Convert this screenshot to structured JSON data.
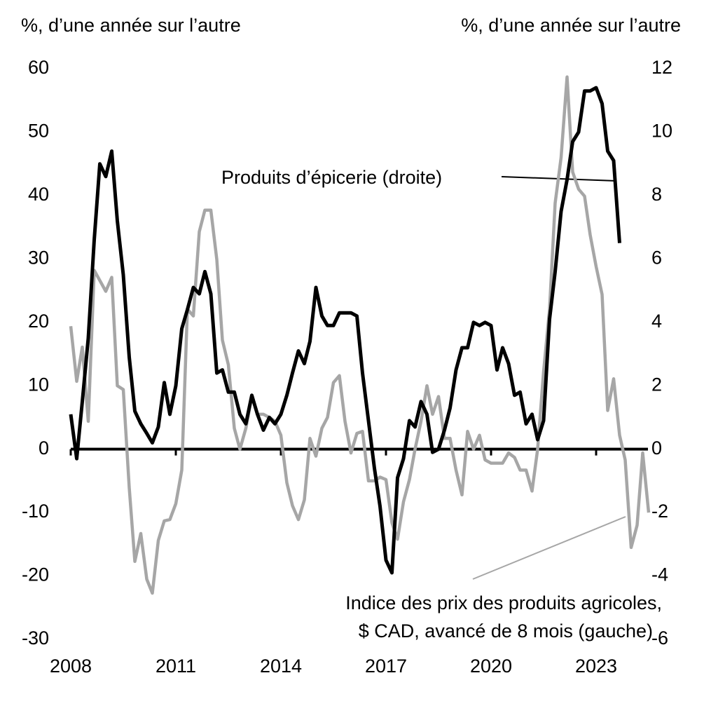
{
  "chart_data": {
    "type": "line",
    "y_label": "%, d’une année sur l’autre",
    "y2_label": "%, d’une année sur l’autre",
    "annotations": [
      "Produits d’épicerie (droite)",
      "Indice des prix des produits agricoles,",
      "$ CAD, avancé de 8 mois (gauche)"
    ],
    "x": [
      2008,
      2008.17,
      2008.33,
      2008.5,
      2008.67,
      2008.83,
      2009,
      2009.17,
      2009.33,
      2009.5,
      2009.67,
      2009.83,
      2010,
      2010.17,
      2010.33,
      2010.5,
      2010.67,
      2010.83,
      2011,
      2011.17,
      2011.33,
      2011.5,
      2011.67,
      2011.83,
      2012,
      2012.17,
      2012.33,
      2012.5,
      2012.67,
      2012.83,
      2013,
      2013.17,
      2013.33,
      2013.5,
      2013.67,
      2013.83,
      2014,
      2014.17,
      2014.33,
      2014.5,
      2014.67,
      2014.83,
      2015,
      2015.17,
      2015.33,
      2015.5,
      2015.67,
      2015.83,
      2016,
      2016.17,
      2016.33,
      2016.5,
      2016.67,
      2016.83,
      2017,
      2017.17,
      2017.33,
      2017.5,
      2017.67,
      2017.83,
      2018,
      2018.17,
      2018.33,
      2018.5,
      2018.67,
      2018.83,
      2019,
      2019.17,
      2019.33,
      2019.5,
      2019.67,
      2019.83,
      2020,
      2020.17,
      2020.33,
      2020.5,
      2020.67,
      2020.83,
      2021,
      2021.17,
      2021.33,
      2021.5,
      2021.67,
      2021.83,
      2022,
      2022.17,
      2022.33,
      2022.5,
      2022.67,
      2022.83,
      2023,
      2023.17,
      2023.33,
      2023.5,
      2023.67,
      2023.83,
      2024,
      2024.17,
      2024.33,
      2024.5
    ],
    "series": [
      {
        "color": "#a6a6a6",
        "axis": "y",
        "values": [
          19.4,
          10.7,
          16.1,
          4.4,
          28.2,
          26.6,
          24.9,
          27.1,
          10,
          9.4,
          -6.1,
          -17.7,
          -13.3,
          -20.5,
          -22.7,
          -14.4,
          -11.3,
          -11.1,
          -8.6,
          -3.3,
          22.1,
          21,
          34.3,
          37.7,
          37.7,
          29.9,
          17.2,
          13.3,
          3.3,
          0,
          3.3,
          8.3,
          5.5,
          5.5,
          5,
          4.4,
          2.2,
          -5.3,
          -8.9,
          -11.1,
          -8,
          1.7,
          -1.1,
          3.3,
          5,
          10.5,
          11.6,
          4.4,
          -0.6,
          2.5,
          2.8,
          -5,
          -5,
          -4.4,
          -4.8,
          -11.6,
          -14.2,
          -8.3,
          -4.8,
          0,
          4.4,
          10,
          5.5,
          8.3,
          1.7,
          1.7,
          -3.3,
          -7.2,
          2.8,
          0,
          2.2,
          -1.7,
          -2.2,
          -2.2,
          -2.2,
          -0.6,
          -1.3,
          -3.3,
          -3.3,
          -6.6,
          0,
          12.2,
          22.1,
          38.8,
          46,
          58.7,
          43.7,
          41,
          39.9,
          33.8,
          28.8,
          24.4,
          6.1,
          11.1,
          2.2,
          -1.7,
          -15.5,
          -12,
          -0.6,
          -10
        ]
      },
      {
        "color": "#000000",
        "axis": "y2",
        "values": [
          1.1,
          -0.3,
          1.5,
          3.5,
          6.6,
          9.0,
          8.6,
          9.4,
          7.2,
          5.5,
          2.9,
          1.2,
          0.8,
          0.5,
          0.2,
          0.7,
          2.1,
          1.1,
          2.0,
          3.8,
          4.4,
          5.1,
          4.9,
          5.6,
          4.9,
          2.4,
          2.5,
          1.8,
          1.8,
          1.1,
          0.8,
          1.7,
          1.1,
          0.6,
          1.0,
          0.8,
          1.1,
          1.7,
          2.4,
          3.1,
          2.7,
          3.4,
          5.1,
          4.2,
          3.9,
          3.9,
          4.3,
          4.3,
          4.3,
          4.2,
          2.4,
          0.9,
          -0.6,
          -1.8,
          -3.5,
          -3.9,
          -0.9,
          -0.3,
          0.9,
          0.7,
          1.5,
          1.1,
          -0.1,
          0.0,
          0.6,
          1.3,
          2.5,
          3.2,
          3.2,
          4.0,
          3.9,
          4.0,
          3.9,
          2.5,
          3.2,
          2.7,
          1.7,
          1.8,
          0.8,
          1.1,
          0.3,
          0.9,
          4.1,
          5.6,
          7.5,
          8.5,
          9.7,
          10.0,
          11.3,
          11.3,
          11.4,
          10.9,
          9.4,
          9.1,
          6.5,
          null,
          null,
          null,
          null,
          null
        ]
      }
    ],
    "xlim": [
      2008,
      2024.48
    ],
    "xticks": [
      2008,
      2011,
      2014,
      2017,
      2020,
      2023
    ],
    "ylim": [
      -30,
      60
    ],
    "yticks": [
      -30,
      -20,
      -10,
      0,
      10,
      20,
      30,
      40,
      50,
      60
    ],
    "y2lim": [
      -6,
      12
    ],
    "y2ticks": [
      -6,
      -4,
      -2,
      0,
      2,
      4,
      6,
      8,
      10,
      12
    ]
  }
}
